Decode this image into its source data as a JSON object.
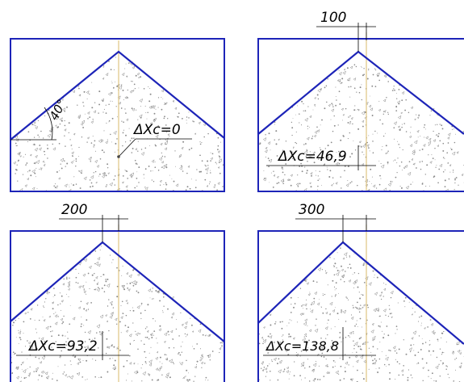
{
  "colors": {
    "outline": "#1d24b8",
    "axis": "#d8b96a",
    "text": "#000000",
    "speckle": "#8a8a8a"
  },
  "panels": [
    {
      "id": "p1",
      "offset_label": "",
      "label": "ΔXc=0",
      "angle_label": "40°"
    },
    {
      "id": "p2",
      "offset_label": "100",
      "label": "ΔXc=46,9"
    },
    {
      "id": "p3",
      "offset_label": "200",
      "label": "ΔXc=93,2"
    },
    {
      "id": "p4",
      "offset_label": "300",
      "label": "ΔXc=138,8"
    }
  ]
}
